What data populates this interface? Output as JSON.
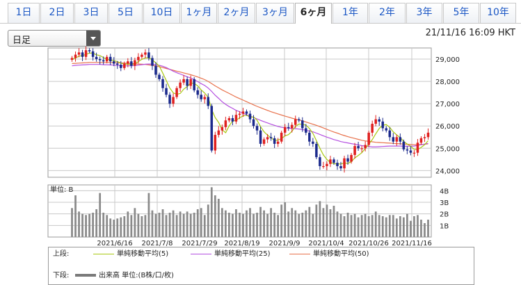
{
  "tabs": [
    {
      "label": "1日",
      "active": false
    },
    {
      "label": "2日",
      "active": false
    },
    {
      "label": "3日",
      "active": false
    },
    {
      "label": "5日",
      "active": false
    },
    {
      "label": "10日",
      "active": false
    },
    {
      "label": "1ヶ月",
      "active": false
    },
    {
      "label": "2ヶ月",
      "active": false
    },
    {
      "label": "3ヶ月",
      "active": false
    },
    {
      "label": "6ヶ月",
      "active": true
    },
    {
      "label": "1年",
      "active": false
    },
    {
      "label": "2年",
      "active": false
    },
    {
      "label": "3年",
      "active": false
    },
    {
      "label": "5年",
      "active": false
    },
    {
      "label": "10年",
      "active": false
    }
  ],
  "period_select": {
    "value": "日足"
  },
  "timestamp": "21/11/16 16:09 HKT",
  "colors": {
    "up": "#e0201f",
    "down": "#1b2a8c",
    "ma5": "#a8c810",
    "ma25": "#b44ee0",
    "ma50": "#e8704a",
    "volume": "#8a8a8a",
    "grid": "#c8c8c8"
  },
  "legend": {
    "upper_label": "上段:",
    "lower_label": "下段:",
    "ma5": "単純移動平均(5)",
    "ma25": "単純移動平均(25)",
    "ma50": "単純移動平均(50)",
    "volume": "出来高 単位:(B株/口/枚)"
  },
  "chart_data": [
    {
      "type": "candlestick",
      "x_tick_labels": [
        "2021/6/16",
        "2021/7/8",
        "2021/7/29",
        "2021/8/19",
        "2021/9/9",
        "2021/10/4",
        "2021/10/26",
        "2021/11/16"
      ],
      "y_tick_labels": [
        "29,000",
        "28,000",
        "27,000",
        "26,000",
        "25,000",
        "24,000"
      ],
      "ylim": [
        23700,
        29500
      ],
      "grid": true,
      "closes": [
        29050,
        29200,
        29300,
        29100,
        29400,
        29350,
        29100,
        29000,
        28950,
        28900,
        29100,
        28900,
        28800,
        28750,
        28600,
        28800,
        28900,
        28700,
        28950,
        29100,
        29200,
        29300,
        29050,
        28700,
        28300,
        28100,
        27700,
        27400,
        27000,
        27300,
        27700,
        27950,
        28100,
        27800,
        28100,
        27600,
        27400,
        27200,
        27300,
        26900,
        24900,
        25600,
        25800,
        25950,
        26250,
        26350,
        26200,
        26500,
        26550,
        26650,
        26550,
        26300,
        26000,
        25800,
        25200,
        25400,
        25500,
        25450,
        25200,
        25300,
        25700,
        25950,
        25900,
        26050,
        26300,
        26250,
        25900,
        25700,
        25300,
        25200,
        24600,
        24200,
        24200,
        24300,
        24500,
        24350,
        24200,
        24100,
        24550,
        24400,
        24700,
        25100,
        25000,
        25000,
        25150,
        25700,
        26100,
        26300,
        26200,
        25900,
        25800,
        25500,
        25300,
        25500,
        25300,
        24950,
        24900,
        24800,
        24800,
        25250,
        25450,
        25500,
        25700
      ],
      "ma5": [
        28980,
        29050,
        29130,
        29160,
        29210,
        29270,
        29270,
        29190,
        29160,
        29070,
        28990,
        28970,
        28930,
        28890,
        28820,
        28770,
        28770,
        28750,
        28790,
        28890,
        28990,
        29050,
        29050,
        28970,
        28830,
        28690,
        28370,
        28040,
        27700,
        27490,
        27420,
        27460,
        27650,
        27770,
        27930,
        27910,
        27800,
        27620,
        27480,
        27290,
        26740,
        26380,
        26160,
        25830,
        25700,
        26000,
        26230,
        26250,
        26370,
        26450,
        26490,
        26390,
        26410,
        26260,
        25970,
        25740,
        25590,
        25470,
        25350,
        25370,
        25430,
        25560,
        25610,
        25760,
        25980,
        26090,
        26080,
        26040,
        25890,
        25670,
        25340,
        25000,
        24700,
        24500,
        24360,
        24310,
        24300,
        24300,
        24340,
        24320,
        24400,
        24570,
        24680,
        24800,
        24990,
        25190,
        25390,
        25650,
        25890,
        26040,
        26060,
        25940,
        25740,
        25600,
        25480,
        25310,
        25190,
        25090,
        24950,
        24940,
        25040,
        25160,
        25340
      ],
      "ma25": [
        28700,
        28720,
        28730,
        28740,
        28750,
        28760,
        28760,
        28760,
        28760,
        28750,
        28750,
        28740,
        28730,
        28720,
        28700,
        28700,
        28700,
        28700,
        28710,
        28730,
        28750,
        28770,
        28780,
        28780,
        28750,
        28720,
        28680,
        28620,
        28540,
        28460,
        28390,
        28330,
        28270,
        28210,
        28150,
        28080,
        27990,
        27900,
        27820,
        27700,
        27550,
        27380,
        27240,
        27090,
        26970,
        26870,
        26790,
        26700,
        26640,
        26570,
        26500,
        26440,
        26380,
        26320,
        26250,
        26190,
        26140,
        26080,
        26030,
        25980,
        25940,
        25920,
        25900,
        25890,
        25880,
        25860,
        25840,
        25810,
        25770,
        25740,
        25680,
        25620,
        25560,
        25500,
        25450,
        25390,
        25350,
        25300,
        25270,
        25240,
        25210,
        25180,
        25150,
        25120,
        25100,
        25080,
        25060,
        25060,
        25070,
        25080,
        25090,
        25100,
        25100,
        25100,
        25100,
        25090,
        25090,
        25090,
        25100,
        25130,
        25160,
        25190,
        25220
      ],
      "ma50": [
        28800,
        28810,
        28820,
        28830,
        28840,
        28850,
        28850,
        28850,
        28850,
        28850,
        28850,
        28850,
        28840,
        28840,
        28830,
        28820,
        28810,
        28800,
        28790,
        28780,
        28770,
        28760,
        28740,
        28720,
        28690,
        28660,
        28620,
        28580,
        28540,
        28500,
        28460,
        28420,
        28380,
        28340,
        28300,
        28250,
        28200,
        28140,
        28080,
        28000,
        27900,
        27800,
        27710,
        27620,
        27540,
        27460,
        27380,
        27300,
        27230,
        27160,
        27090,
        27020,
        26950,
        26880,
        26820,
        26760,
        26700,
        26640,
        26590,
        26540,
        26490,
        26440,
        26400,
        26350,
        26310,
        26270,
        26230,
        26180,
        26130,
        26080,
        26030,
        25970,
        25910,
        25850,
        25790,
        25730,
        25680,
        25620,
        25570,
        25520,
        25480,
        25440,
        25400,
        25360,
        25330,
        25310,
        25290,
        25270,
        25260,
        25250,
        25240,
        25230,
        25220,
        25210,
        25200,
        25190,
        25180,
        25170,
        25160,
        25160,
        25170,
        25180,
        25200
      ]
    },
    {
      "type": "bar",
      "title": "単位: B",
      "y_tick_labels": [
        "4B",
        "3B",
        "2B",
        "1B"
      ],
      "ylim": [
        0,
        4.5
      ],
      "grid": true,
      "values": [
        2.5,
        3.6,
        2.2,
        2.0,
        1.9,
        2.0,
        2.1,
        2.4,
        3.8,
        2.1,
        1.9,
        1.6,
        1.5,
        1.6,
        1.7,
        1.8,
        2.2,
        1.9,
        2.5,
        2.0,
        1.8,
        1.9,
        3.8,
        2.3,
        2.0,
        2.1,
        2.4,
        1.9,
        2.1,
        2.3,
        1.9,
        2.2,
        2.0,
        2.2,
        2.0,
        2.1,
        2.4,
        2.5,
        1.9,
        2.8,
        4.3,
        3.6,
        3.3,
        2.5,
        2.3,
        2.1,
        2.0,
        2.4,
        2.1,
        2.0,
        2.3,
        2.5,
        2.0,
        2.1,
        2.6,
        2.3,
        2.0,
        2.5,
        2.1,
        1.9,
        2.8,
        3.0,
        2.2,
        2.5,
        2.3,
        2.0,
        2.1,
        2.3,
        2.6,
        2.0,
        2.8,
        3.1,
        2.5,
        2.8,
        2.4,
        2.7,
        2.2,
        2.0,
        1.8,
        2.1,
        1.9,
        2.0,
        1.7,
        1.9,
        2.0,
        1.8,
        1.9,
        2.2,
        1.9,
        1.8,
        1.7,
        1.9,
        1.9,
        1.6,
        1.8,
        1.7,
        2.0,
        1.4,
        1.8,
        1.9,
        1.5,
        1.2,
        1.5
      ]
    }
  ]
}
